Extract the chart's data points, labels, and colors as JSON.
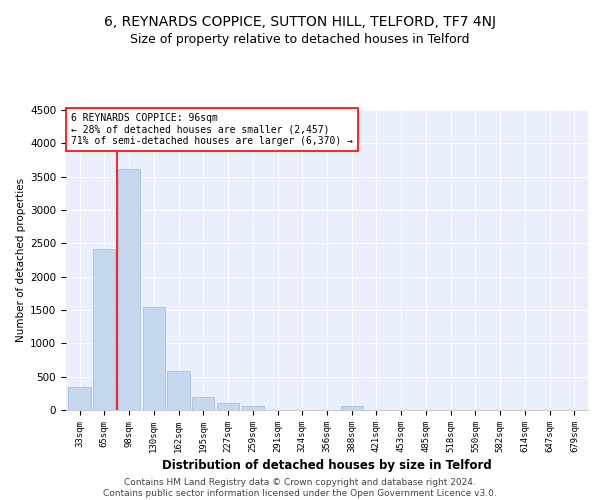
{
  "title": "6, REYNARDS COPPICE, SUTTON HILL, TELFORD, TF7 4NJ",
  "subtitle": "Size of property relative to detached houses in Telford",
  "xlabel": "Distribution of detached houses by size in Telford",
  "ylabel": "Number of detached properties",
  "categories": [
    "33sqm",
    "65sqm",
    "98sqm",
    "130sqm",
    "162sqm",
    "195sqm",
    "227sqm",
    "259sqm",
    "291sqm",
    "324sqm",
    "356sqm",
    "388sqm",
    "421sqm",
    "453sqm",
    "485sqm",
    "518sqm",
    "550sqm",
    "582sqm",
    "614sqm",
    "647sqm",
    "679sqm"
  ],
  "values": [
    340,
    2420,
    3620,
    1550,
    590,
    200,
    100,
    55,
    0,
    0,
    0,
    60,
    0,
    0,
    0,
    0,
    0,
    0,
    0,
    0,
    0
  ],
  "bar_color": "#c5d8f0",
  "bar_edge_color": "#a0b8d8",
  "red_line_x": 1.5,
  "annotation_line1": "6 REYNARDS COPPICE: 96sqm",
  "annotation_line2": "← 28% of detached houses are smaller (2,457)",
  "annotation_line3": "71% of semi-detached houses are larger (6,370) →",
  "annotation_box_color": "white",
  "annotation_box_edge": "red",
  "ylim": [
    0,
    4500
  ],
  "yticks": [
    0,
    500,
    1000,
    1500,
    2000,
    2500,
    3000,
    3500,
    4000,
    4500
  ],
  "footer1": "Contains HM Land Registry data © Crown copyright and database right 2024.",
  "footer2": "Contains public sector information licensed under the Open Government Licence v3.0.",
  "bg_color": "#eaf0fb",
  "title_fontsize": 10,
  "subtitle_fontsize": 9,
  "footer_fontsize": 6.5
}
